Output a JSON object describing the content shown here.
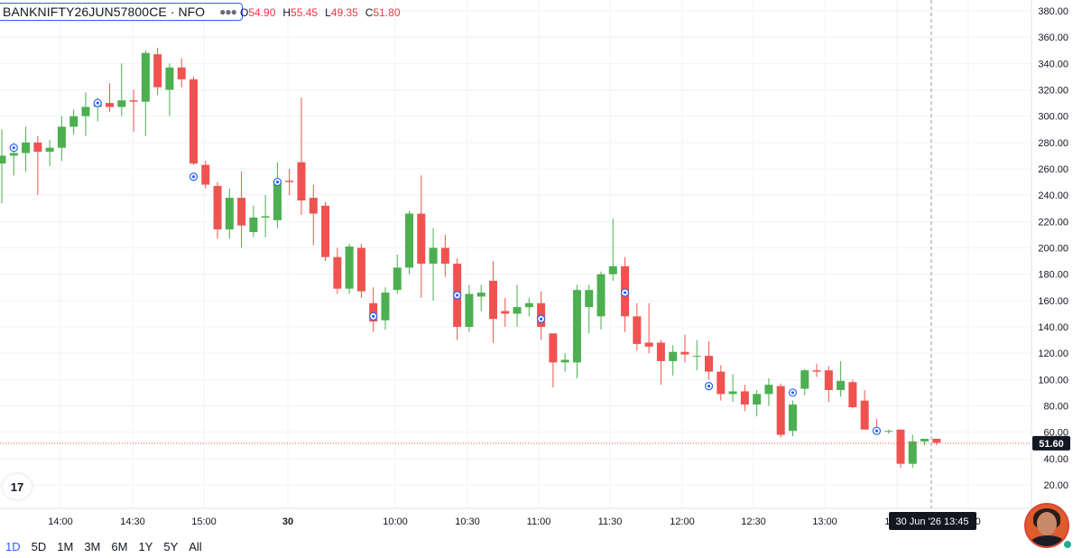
{
  "header": {
    "symbol": "BANKNIFTY26JUN57800CE",
    "separator": "·",
    "exchange": "NFO",
    "more_icon": "ellipsis-icon",
    "ohlc": [
      {
        "key": "O",
        "value": "54.90"
      },
      {
        "key": "H",
        "value": "55.45"
      },
      {
        "key": "L",
        "value": "49.35"
      },
      {
        "key": "C",
        "value": "51.80"
      }
    ]
  },
  "chart_data": {
    "type": "candlestick",
    "y_axis": {
      "ticks": [
        20,
        40,
        60,
        80,
        100,
        120,
        140,
        160,
        180,
        200,
        220,
        240,
        260,
        280,
        300,
        320,
        340,
        360,
        380
      ],
      "tick_labels": [
        "20.00",
        "40.00",
        "60.00",
        "80.00",
        "100.00",
        "120.00",
        "140.00",
        "160.00",
        "180.00",
        "200.00",
        "220.00",
        "240.00",
        "260.00",
        "280.00",
        "300.00",
        "320.00",
        "340.00",
        "360.00",
        "380.00"
      ],
      "ylim": [
        2,
        388
      ]
    },
    "x_axis": {
      "tick_labels": [
        "14:00",
        "14:30",
        "15:00",
        "30",
        "10:00",
        "10:30",
        "11:00",
        "11:30",
        "12:00",
        "12:30",
        "13:00",
        "13:30",
        "14:00"
      ],
      "bold": [
        "30"
      ]
    },
    "last_price": 51.6,
    "last_price_label": "51.60",
    "crosshair_label": "30 Jun '26   13:45",
    "colors": {
      "up": "#4caf50",
      "down": "#ef5350",
      "marker": "#2962ff",
      "last_line": "#ef5350"
    },
    "candles": [
      {
        "o": 264,
        "h": 290,
        "l": 234,
        "c": 270
      },
      {
        "o": 270,
        "h": 280,
        "l": 255,
        "c": 272
      },
      {
        "o": 272,
        "h": 292,
        "l": 258,
        "c": 280
      },
      {
        "o": 280,
        "h": 285,
        "l": 240,
        "c": 273
      },
      {
        "o": 273,
        "h": 282,
        "l": 262,
        "c": 276
      },
      {
        "o": 276,
        "h": 300,
        "l": 266,
        "c": 292
      },
      {
        "o": 292,
        "h": 305,
        "l": 286,
        "c": 300
      },
      {
        "o": 300,
        "h": 318,
        "l": 285,
        "c": 307
      },
      {
        "o": 307,
        "h": 314,
        "l": 296,
        "c": 310
      },
      {
        "o": 310,
        "h": 325,
        "l": 303,
        "c": 307
      },
      {
        "o": 307,
        "h": 340,
        "l": 300,
        "c": 312
      },
      {
        "o": 312,
        "h": 320,
        "l": 288,
        "c": 311
      },
      {
        "o": 311,
        "h": 350,
        "l": 285,
        "c": 348
      },
      {
        "o": 347,
        "h": 352,
        "l": 316,
        "c": 322
      },
      {
        "o": 320,
        "h": 340,
        "l": 300,
        "c": 337
      },
      {
        "o": 337,
        "h": 344,
        "l": 322,
        "c": 328
      },
      {
        "o": 328,
        "h": 330,
        "l": 263,
        "c": 264
      },
      {
        "o": 263,
        "h": 266,
        "l": 245,
        "c": 248
      },
      {
        "o": 247,
        "h": 250,
        "l": 207,
        "c": 214
      },
      {
        "o": 214,
        "h": 245,
        "l": 207,
        "c": 238
      },
      {
        "o": 238,
        "h": 258,
        "l": 200,
        "c": 217
      },
      {
        "o": 212,
        "h": 232,
        "l": 208,
        "c": 223
      },
      {
        "o": 223,
        "h": 240,
        "l": 208,
        "c": 224
      },
      {
        "o": 221,
        "h": 265,
        "l": 215,
        "c": 251
      },
      {
        "o": 251,
        "h": 260,
        "l": 240,
        "c": 250
      },
      {
        "o": 265,
        "h": 314,
        "l": 225,
        "c": 236
      },
      {
        "o": 238,
        "h": 248,
        "l": 202,
        "c": 226
      },
      {
        "o": 232,
        "h": 235,
        "l": 190,
        "c": 193
      },
      {
        "o": 193,
        "h": 200,
        "l": 165,
        "c": 169
      },
      {
        "o": 169,
        "h": 203,
        "l": 165,
        "c": 201
      },
      {
        "o": 200,
        "h": 203,
        "l": 162,
        "c": 167
      },
      {
        "o": 158,
        "h": 170,
        "l": 136,
        "c": 144
      },
      {
        "o": 145,
        "h": 170,
        "l": 138,
        "c": 166
      },
      {
        "o": 168,
        "h": 195,
        "l": 165,
        "c": 185
      },
      {
        "o": 185,
        "h": 228,
        "l": 180,
        "c": 226
      },
      {
        "o": 226,
        "h": 255,
        "l": 162,
        "c": 188
      },
      {
        "o": 188,
        "h": 215,
        "l": 160,
        "c": 200
      },
      {
        "o": 200,
        "h": 210,
        "l": 178,
        "c": 188
      },
      {
        "o": 188,
        "h": 192,
        "l": 130,
        "c": 140
      },
      {
        "o": 140,
        "h": 172,
        "l": 136,
        "c": 165
      },
      {
        "o": 163,
        "h": 172,
        "l": 152,
        "c": 166
      },
      {
        "o": 175,
        "h": 190,
        "l": 128,
        "c": 146
      },
      {
        "o": 152,
        "h": 162,
        "l": 140,
        "c": 150
      },
      {
        "o": 150,
        "h": 172,
        "l": 140,
        "c": 155
      },
      {
        "o": 155,
        "h": 162,
        "l": 148,
        "c": 158
      },
      {
        "o": 158,
        "h": 167,
        "l": 130,
        "c": 140
      },
      {
        "o": 135,
        "h": 135,
        "l": 94,
        "c": 113
      },
      {
        "o": 113,
        "h": 120,
        "l": 106,
        "c": 115
      },
      {
        "o": 113,
        "h": 172,
        "l": 101,
        "c": 168
      },
      {
        "o": 155,
        "h": 172,
        "l": 135,
        "c": 168
      },
      {
        "o": 148,
        "h": 182,
        "l": 138,
        "c": 180
      },
      {
        "o": 180,
        "h": 222,
        "l": 175,
        "c": 186
      },
      {
        "o": 186,
        "h": 193,
        "l": 136,
        "c": 148
      },
      {
        "o": 148,
        "h": 158,
        "l": 122,
        "c": 127
      },
      {
        "o": 128,
        "h": 158,
        "l": 120,
        "c": 125
      },
      {
        "o": 128,
        "h": 130,
        "l": 96,
        "c": 114
      },
      {
        "o": 114,
        "h": 126,
        "l": 103,
        "c": 121
      },
      {
        "o": 121,
        "h": 134,
        "l": 113,
        "c": 119
      },
      {
        "o": 118,
        "h": 130,
        "l": 107,
        "c": 118
      },
      {
        "o": 118,
        "h": 129,
        "l": 100,
        "c": 106
      },
      {
        "o": 106,
        "h": 111,
        "l": 84,
        "c": 89
      },
      {
        "o": 89,
        "h": 104,
        "l": 83,
        "c": 91
      },
      {
        "o": 91,
        "h": 96,
        "l": 76,
        "c": 81
      },
      {
        "o": 81,
        "h": 92,
        "l": 72,
        "c": 89
      },
      {
        "o": 89,
        "h": 101,
        "l": 80,
        "c": 96
      },
      {
        "o": 95,
        "h": 97,
        "l": 56,
        "c": 58
      },
      {
        "o": 61,
        "h": 84,
        "l": 57,
        "c": 81
      },
      {
        "o": 93,
        "h": 108,
        "l": 88,
        "c": 107
      },
      {
        "o": 107,
        "h": 112,
        "l": 102,
        "c": 106
      },
      {
        "o": 107,
        "h": 110,
        "l": 83,
        "c": 92
      },
      {
        "o": 92,
        "h": 114,
        "l": 87,
        "c": 99
      },
      {
        "o": 98,
        "h": 100,
        "l": 78,
        "c": 79
      },
      {
        "o": 84,
        "h": 92,
        "l": 62,
        "c": 62
      },
      {
        "o": 62,
        "h": 70,
        "l": 58,
        "c": 61
      },
      {
        "o": 61,
        "h": 62,
        "l": 59,
        "c": 61
      },
      {
        "o": 62,
        "h": 62,
        "l": 33,
        "c": 36
      },
      {
        "o": 36,
        "h": 58,
        "l": 33,
        "c": 53
      },
      {
        "o": 53,
        "h": 55,
        "l": 50,
        "c": 55
      },
      {
        "o": 55,
        "h": 55,
        "l": 50,
        "c": 52
      }
    ],
    "markers": [
      {
        "index": 1,
        "value": 276
      },
      {
        "index": 8,
        "value": 310
      },
      {
        "index": 16,
        "value": 254
      },
      {
        "index": 23,
        "value": 250
      },
      {
        "index": 31,
        "value": 148
      },
      {
        "index": 38,
        "value": 164
      },
      {
        "index": 45,
        "value": 146
      },
      {
        "index": 52,
        "value": 166
      },
      {
        "index": 59,
        "value": 95
      },
      {
        "index": 66,
        "value": 90
      },
      {
        "index": 73,
        "value": 61
      }
    ]
  },
  "range_bar": {
    "items": [
      "1D",
      "5D",
      "1M",
      "3M",
      "6M",
      "1Y",
      "5Y",
      "All"
    ],
    "active": "1D"
  },
  "logo_text": "17",
  "logo_icon": "tradingview-logo-icon",
  "avatar_icon": "user-avatar-icon"
}
